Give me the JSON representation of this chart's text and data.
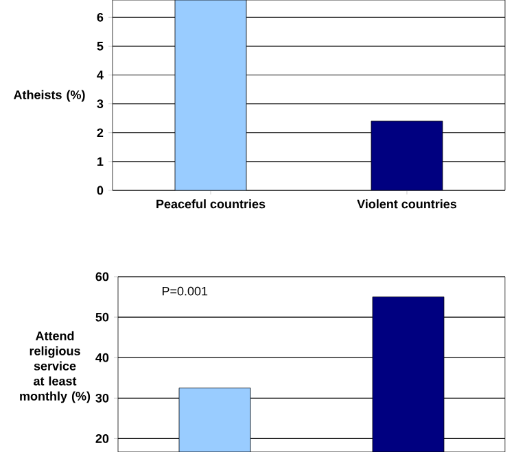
{
  "chart_data": [
    {
      "type": "bar",
      "categories": [
        "Peaceful countries",
        "Violent countries"
      ],
      "values": [
        6.6,
        2.4
      ],
      "colors": [
        "#99ccff",
        "#000080"
      ],
      "ylabel": "Atheists (%)",
      "ylim": [
        0,
        6.6
      ],
      "yticks": [
        0,
        1,
        2,
        3,
        4,
        5,
        6
      ],
      "grid": "y"
    },
    {
      "type": "bar",
      "categories": [
        null,
        null
      ],
      "values": [
        32.5,
        55
      ],
      "colors": [
        "#99ccff",
        "#000080"
      ],
      "ylabel": "Attend religious service at least monthly (%)",
      "ylim": [
        16.7,
        60
      ],
      "yticks": [
        20,
        30,
        40,
        50,
        60
      ],
      "grid": "y",
      "annotations": [
        "P=0.001"
      ]
    }
  ]
}
